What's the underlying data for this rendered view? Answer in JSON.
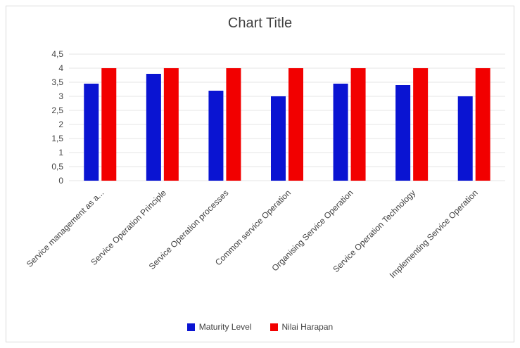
{
  "chart_data": {
    "type": "bar",
    "title": "Chart Title",
    "categories": [
      "Service management as a...",
      "Service Operation Principle",
      "Service Operation processes",
      "Common service Operation",
      "Organising Service Operation",
      "Service Operation Technology",
      "Implementing Service Operation"
    ],
    "series": [
      {
        "name": "Maturity Level",
        "color": "#0a14d2",
        "values": [
          3.45,
          3.8,
          3.2,
          3.0,
          3.45,
          3.4,
          3.0
        ]
      },
      {
        "name": "Nilai Harapan",
        "color": "#f20000",
        "values": [
          4,
          4,
          4,
          4,
          4,
          4,
          4
        ]
      }
    ],
    "ylim": [
      0,
      4.5
    ],
    "yticks": [
      "0",
      "0,5",
      "1",
      "1,5",
      "2",
      "2,5",
      "3",
      "3,5",
      "4",
      "4,5"
    ],
    "grid": true,
    "legend_position": "bottom"
  }
}
